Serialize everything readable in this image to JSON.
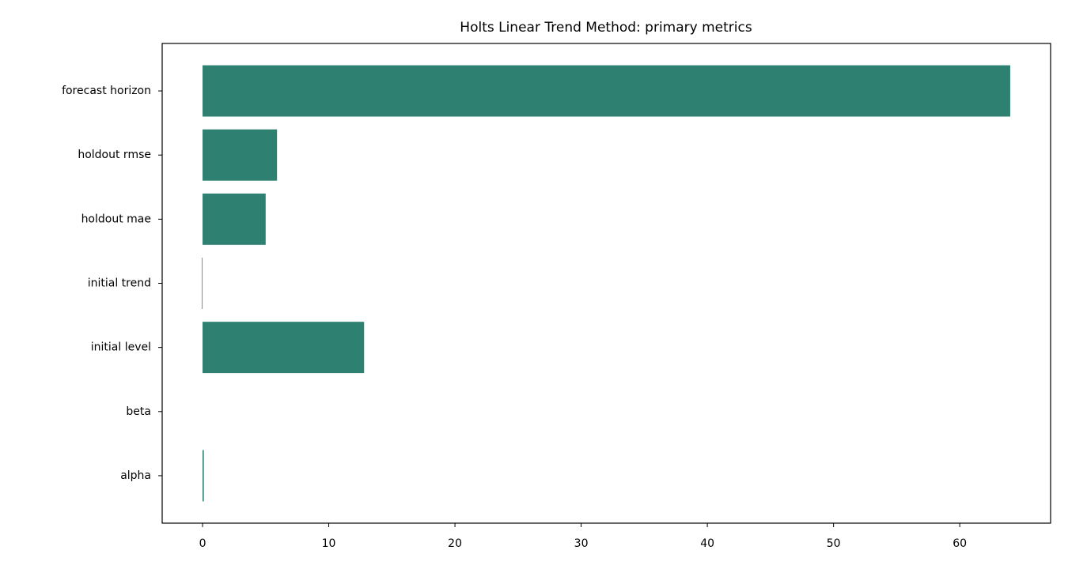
{
  "chart_data": {
    "type": "barh",
    "title": "Holts Linear Trend Method: primary metrics",
    "categories": [
      "alpha",
      "beta",
      "initial level",
      "initial trend",
      "holdout mae",
      "holdout rmse",
      "forecast horizon"
    ],
    "values": [
      0.1,
      0,
      12.8,
      -0.05,
      5.0,
      5.9,
      64
    ],
    "color": "#2e8070",
    "xlim": [
      -3.2,
      67.2
    ],
    "xticks": [
      0,
      10,
      20,
      30,
      40,
      50,
      60
    ]
  }
}
